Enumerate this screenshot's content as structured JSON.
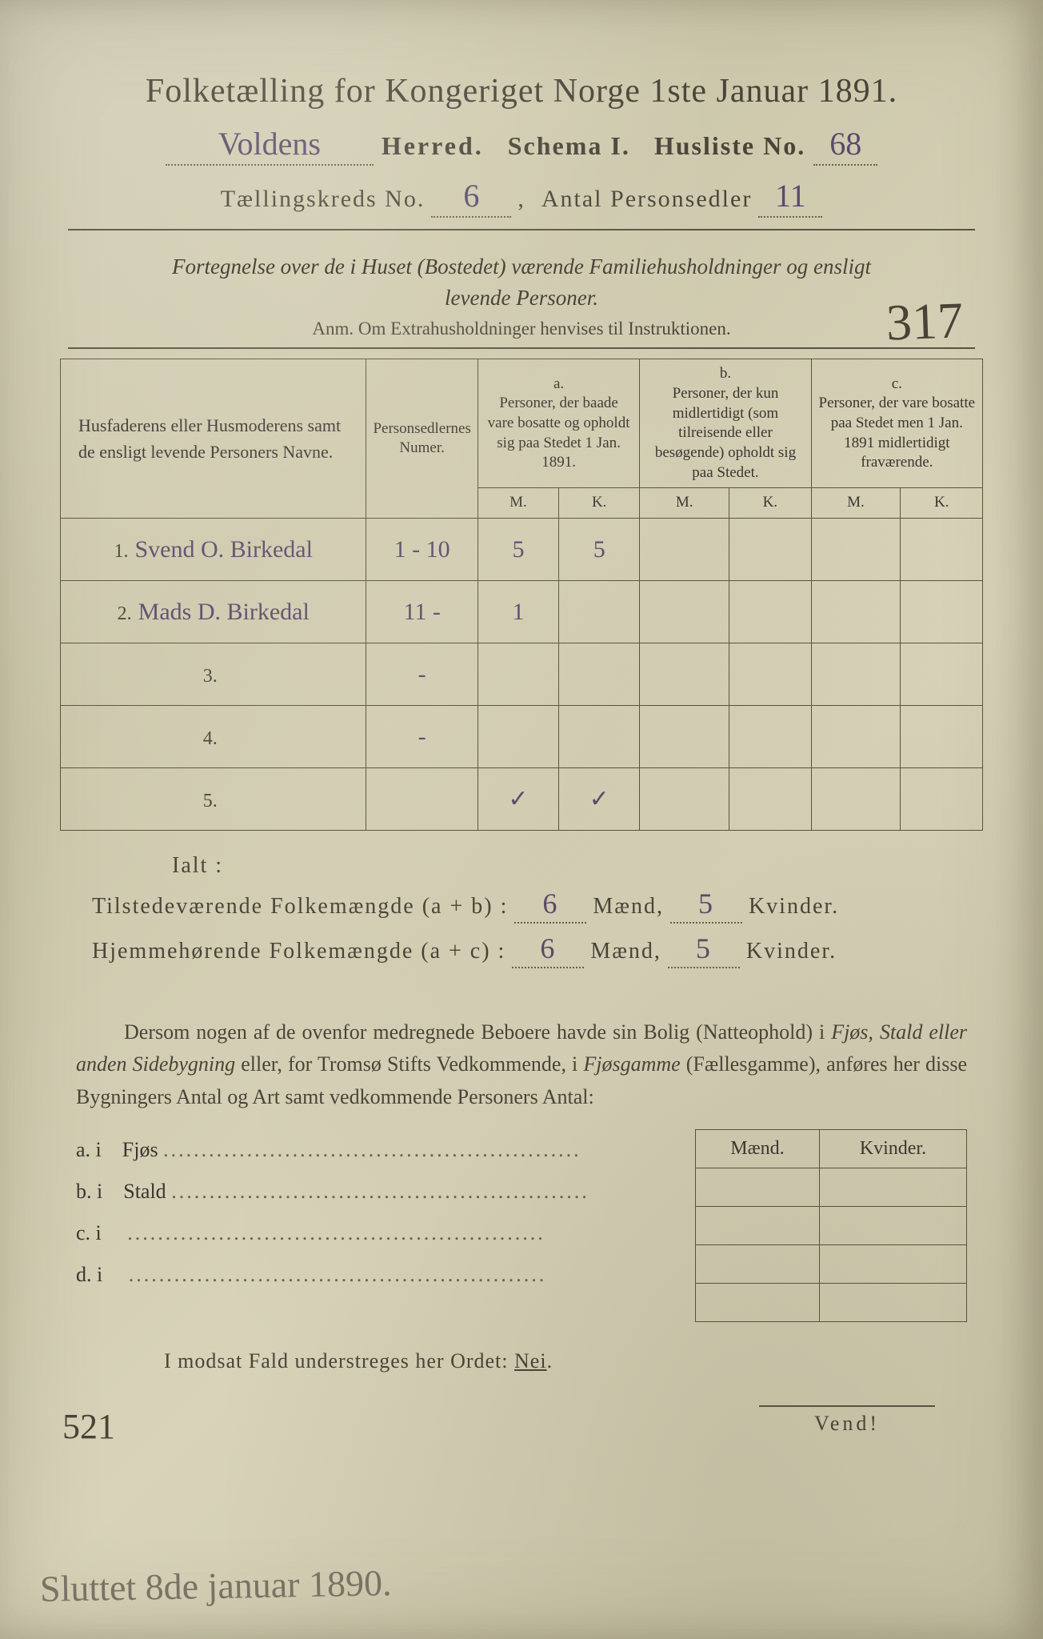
{
  "background_color": "#d4d0b8",
  "print_color": "#4a4438",
  "handwriting_color": "#5c4a6b",
  "header": {
    "title": "Folketælling for Kongeriget Norge 1ste Januar 1891.",
    "herred_value": "Voldens",
    "herred_label": "Herred.",
    "schema_label": "Schema I.",
    "husliste_label": "Husliste No.",
    "husliste_value": "68",
    "kreds_label": "Tællingskreds No.",
    "kreds_value": "6",
    "personsedler_label": "Antal Personsedler",
    "personsedler_value": "11"
  },
  "description": {
    "line1": "Fortegnelse over de i Huset (Bostedet) værende Familiehusholdninger og ensligt",
    "line2": "levende Personer.",
    "anm": "Anm.   Om Extrahusholdninger henvises til Instruktionen."
  },
  "stamp_number": "317",
  "table": {
    "col1": "Husfaderens eller Husmoderens samt de ensligt levende Personers Navne.",
    "col2": "Personsedlernes Numer.",
    "col_a_top": "a.",
    "col_a": "Personer, der baade vare bosatte og opholdt sig paa Stedet 1 Jan. 1891.",
    "col_b_top": "b.",
    "col_b": "Personer, der kun midlertidigt (som tilreisende eller besøgende) opholdt sig paa Stedet.",
    "col_c_top": "c.",
    "col_c": "Personer, der vare bosatte paa Stedet men 1 Jan. 1891 midlertidigt fraværende.",
    "m": "M.",
    "k": "K.",
    "rows": [
      {
        "n": "1.",
        "name": "Svend O. Birkedal",
        "nr": "1 - 10",
        "am": "5",
        "ak": "5",
        "bm": "",
        "bk": "",
        "cm": "",
        "ck": ""
      },
      {
        "n": "2.",
        "name": "Mads D. Birkedal",
        "nr": "11 -",
        "am": "1",
        "ak": "",
        "bm": "",
        "bk": "",
        "cm": "",
        "ck": ""
      },
      {
        "n": "3.",
        "name": "",
        "nr": "-",
        "am": "",
        "ak": "",
        "bm": "",
        "bk": "",
        "cm": "",
        "ck": ""
      },
      {
        "n": "4.",
        "name": "",
        "nr": "-",
        "am": "",
        "ak": "",
        "bm": "",
        "bk": "",
        "cm": "",
        "ck": ""
      },
      {
        "n": "5.",
        "name": "",
        "nr": "",
        "am": "✓",
        "ak": "✓",
        "bm": "",
        "bk": "",
        "cm": "",
        "ck": ""
      }
    ]
  },
  "totals": {
    "ialt": "Ialt :",
    "line1_label": "Tilstedeværende Folkemængde (a + b) :",
    "line1_m": "6",
    "line1_k": "5",
    "line2_label": "Hjemmehørende Folkemængde (a + c) :",
    "line2_m": "6",
    "line2_k": "5",
    "maend": "Mænd,",
    "kvinder": "Kvinder."
  },
  "paragraph": "Dersom nogen af de ovenfor medregnede Beboere havde sin Bolig (Natteophold) i Fjøs, Stald eller anden Sidebygning eller, for Tromsø Stifts Vedkommende, i Fjøsgamme (Fællesgamme), anføres her disse Bygningers Antal og Art samt vedkommende Personers Antal:",
  "mini": {
    "maend": "Mænd.",
    "kvinder": "Kvinder.",
    "rows": [
      {
        "label": "a.  i",
        "type": "Fjøs"
      },
      {
        "label": "b.  i",
        "type": "Stald"
      },
      {
        "label": "c.  i",
        "type": ""
      },
      {
        "label": "d.  i",
        "type": ""
      }
    ]
  },
  "margin_number": "521",
  "modsat": "I modsat Fald understreges her Ordet: Nei.",
  "vend": "Vend!",
  "bottom_note": "Sluttet 8de januar 1890."
}
